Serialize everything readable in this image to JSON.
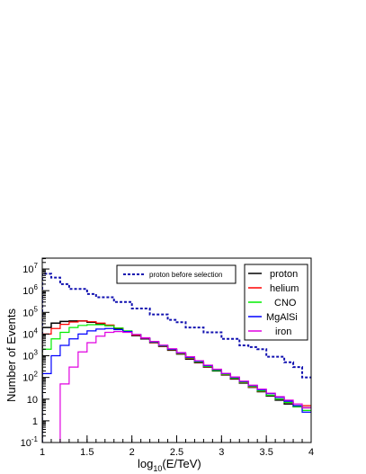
{
  "chart_data": {
    "type": "line",
    "title": "",
    "xlabel_main": "log",
    "xlabel_sub": "10",
    "xlabel_rest": "(E/TeV)",
    "ylabel": "Number of Events",
    "xlim": [
      1,
      4
    ],
    "ylim_log10": [
      -1,
      7.5
    ],
    "y_scale": "log",
    "grid": false,
    "legend_placement": "top-right",
    "x_ticks": [
      {
        "v": 1,
        "label": "1"
      },
      {
        "v": 1.5,
        "label": "1.5"
      },
      {
        "v": 2,
        "label": "2"
      },
      {
        "v": 2.5,
        "label": "2.5"
      },
      {
        "v": 3,
        "label": "3"
      },
      {
        "v": 3.5,
        "label": "3.5"
      },
      {
        "v": 4,
        "label": "4"
      }
    ],
    "y_ticks": [
      {
        "exp": -1,
        "base": "10",
        "sup": "-1"
      },
      {
        "exp": 0,
        "base": "1",
        "sup": ""
      },
      {
        "exp": 1,
        "base": "10",
        "sup": ""
      },
      {
        "exp": 2,
        "base": "10",
        "sup": "2"
      },
      {
        "exp": 3,
        "base": "10",
        "sup": "3"
      },
      {
        "exp": 4,
        "base": "10",
        "sup": "4"
      },
      {
        "exp": 5,
        "base": "10",
        "sup": "5"
      },
      {
        "exp": 6,
        "base": "10",
        "sup": "6"
      },
      {
        "exp": 7,
        "base": "10",
        "sup": "7"
      }
    ],
    "bin_edges": [
      1.0,
      1.1,
      1.2,
      1.3,
      1.4,
      1.5,
      1.6,
      1.7,
      1.8,
      1.9,
      2.0,
      2.1,
      2.2,
      2.3,
      2.4,
      2.5,
      2.6,
      2.7,
      2.8,
      2.9,
      3.0,
      3.1,
      3.2,
      3.3,
      3.4,
      3.5,
      3.6,
      3.7,
      3.8,
      3.9,
      4.0
    ],
    "series": [
      {
        "name": "proton before selection",
        "color": "#1010b0",
        "dashed": true,
        "width": 2,
        "values": [
          6000000,
          4000000,
          2000000,
          1200000,
          1200000,
          700000,
          500000,
          500000,
          300000,
          300000,
          150000,
          150000,
          80000,
          80000,
          45000,
          35000,
          20000,
          20000,
          12000,
          12000,
          6000,
          6000,
          3000,
          2500,
          2000,
          900,
          900,
          500,
          300,
          100
        ]
      },
      {
        "name": "proton",
        "color": "#000000",
        "dashed": false,
        "width": 1.5,
        "values": [
          20000,
          32000,
          38000,
          40000,
          40000,
          35000,
          30000,
          25000,
          18000,
          13000,
          8500,
          6000,
          4000,
          2700,
          1800,
          1200,
          700,
          480,
          300,
          200,
          130,
          85,
          55,
          35,
          22,
          14,
          9,
          6,
          4.5,
          4
        ]
      },
      {
        "name": "helium",
        "color": "#ff0000",
        "dashed": false,
        "width": 1.2,
        "values": [
          10000,
          18000,
          28000,
          36000,
          40000,
          37000,
          32000,
          26000,
          19000,
          13500,
          9000,
          6200,
          4100,
          2800,
          1900,
          1250,
          750,
          500,
          310,
          210,
          135,
          90,
          58,
          36,
          23,
          15,
          10,
          7,
          5,
          5
        ]
      },
      {
        "name": "CNO",
        "color": "#00ee00",
        "dashed": false,
        "width": 1.2,
        "values": [
          2000,
          6000,
          12000,
          20000,
          25000,
          27000,
          27000,
          24000,
          19000,
          14000,
          9500,
          6500,
          4300,
          2900,
          1950,
          1300,
          800,
          520,
          320,
          210,
          140,
          92,
          60,
          38,
          24,
          15,
          10,
          7,
          4.5,
          3
        ]
      },
      {
        "name": "MgAlSi",
        "color": "#0000ff",
        "dashed": false,
        "width": 1.2,
        "values": [
          150,
          1000,
          3000,
          6000,
          10000,
          14000,
          17000,
          18000,
          16000,
          13000,
          9500,
          6500,
          4400,
          3000,
          2000,
          1350,
          850,
          560,
          350,
          230,
          150,
          100,
          65,
          42,
          27,
          18,
          12,
          8,
          5,
          2.5
        ]
      },
      {
        "name": "iron",
        "color": "#e000e0",
        "dashed": false,
        "width": 1.2,
        "values": [
          0.0001,
          0.0001,
          50,
          300,
          1500,
          4000,
          8000,
          12000,
          13000,
          12000,
          9500,
          6800,
          4600,
          3100,
          2100,
          1400,
          900,
          590,
          370,
          240,
          155,
          105,
          68,
          44,
          29,
          19,
          13,
          9,
          6,
          4
        ]
      }
    ]
  }
}
